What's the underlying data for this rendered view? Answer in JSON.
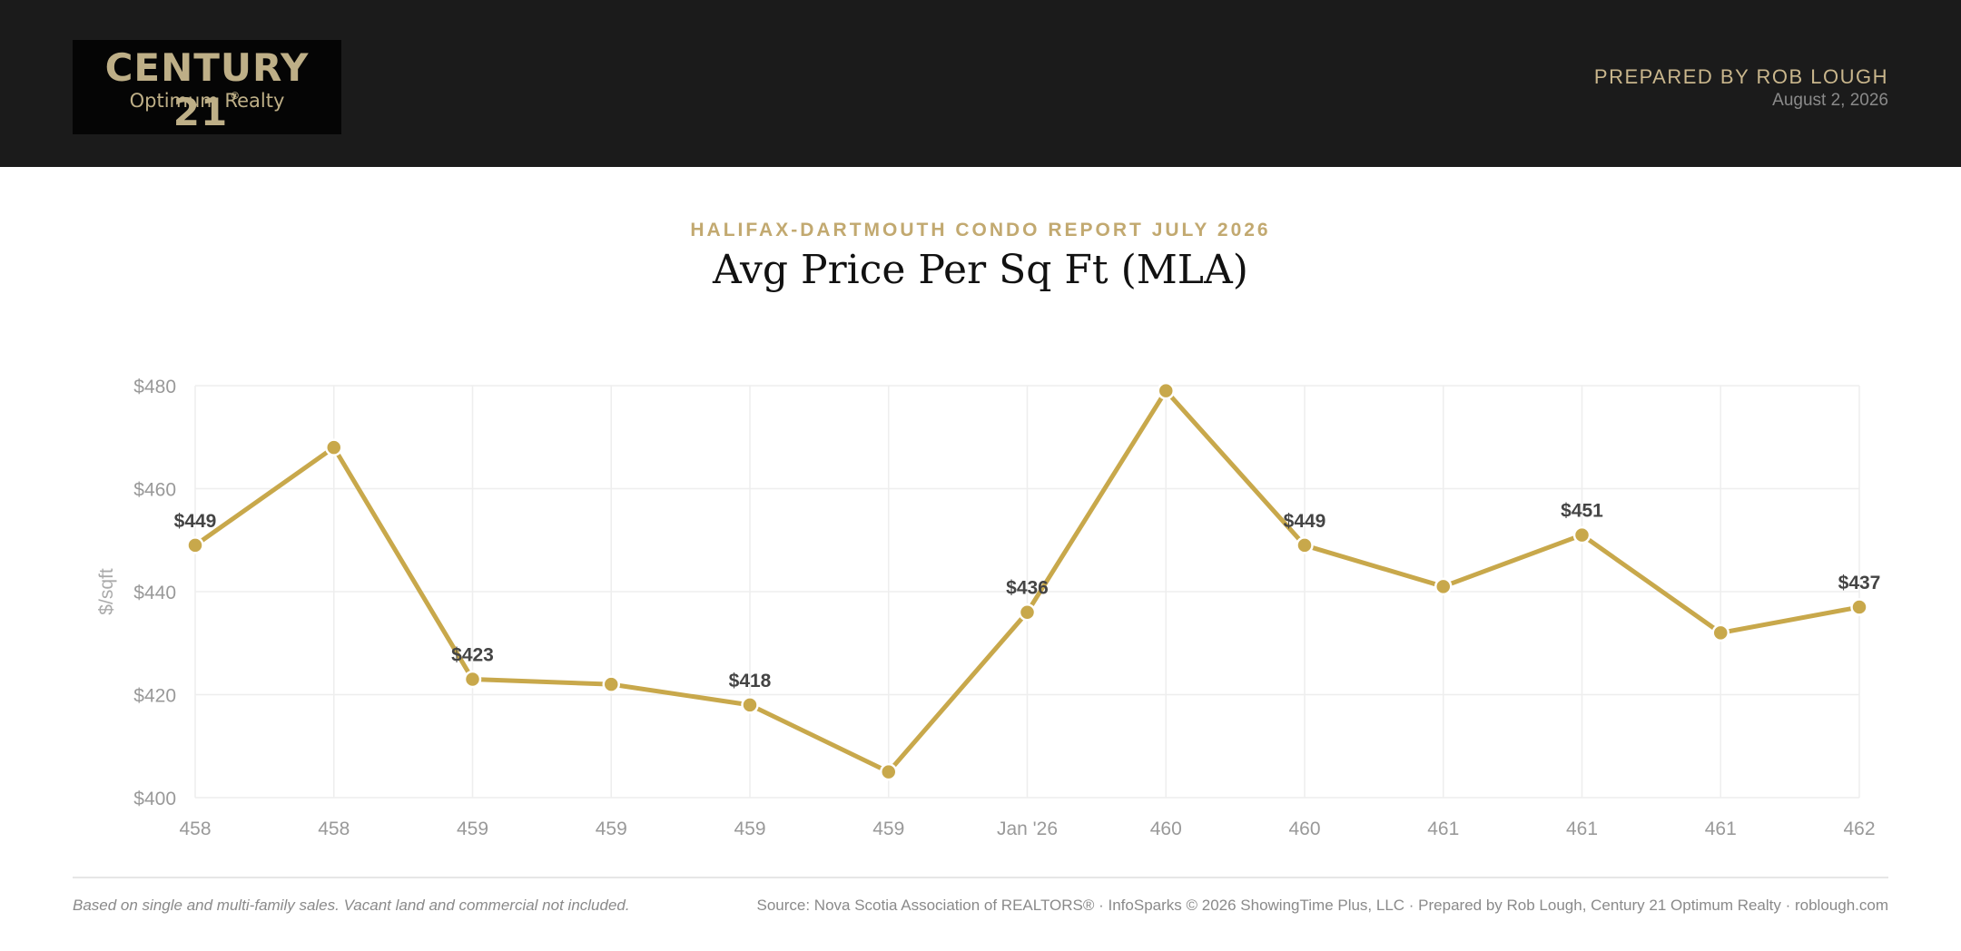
{
  "header": {
    "logo": {
      "brand": "CENTURY 21",
      "registered": "®",
      "office": "Optimum Realty"
    },
    "prepared_by": "PREPARED BY ROB LOUGH",
    "date": "August 2, 2026"
  },
  "report": {
    "subtitle": "HALIFAX-DARTMOUTH CONDO REPORT JULY 2026",
    "title": "Avg Price Per Sq Ft (MLA)"
  },
  "colors": {
    "accent": "#c8a84b",
    "gold_text": "#c2a970",
    "header_bg": "#1b1b1b",
    "grid": "#eeeeee",
    "tick_text": "#999999",
    "data_label": "#444444"
  },
  "chart_data": {
    "type": "line",
    "title": "",
    "xlabel": "",
    "ylabel": "$/sqft",
    "categories": [
      "458",
      "458",
      "459",
      "459",
      "459",
      "459",
      "Jan '26",
      "460",
      "460",
      "461",
      "461",
      "461",
      "462"
    ],
    "series": [
      {
        "name": "",
        "values": [
          449,
          468,
          423,
          422,
          418,
          405,
          436,
          479,
          449,
          441,
          451,
          432,
          437
        ]
      }
    ],
    "data_labels": [
      "$449",
      "",
      "$423",
      "",
      "$418",
      "",
      "$436",
      "",
      "$449",
      "",
      "$451",
      "",
      "$437"
    ],
    "ylim": [
      400,
      480
    ],
    "yticks": [
      400,
      420,
      440,
      460,
      480
    ],
    "ytick_labels": [
      "$400",
      "$420",
      "$440",
      "$460",
      "$480"
    ],
    "grid": true,
    "legend": "none"
  },
  "footer": {
    "note": "Based on single and multi-family sales. Vacant land and commercial not included.",
    "source": "Source: Nova Scotia Association of REALTORS® · InfoSparks © 2026 ShowingTime Plus, LLC · Prepared by Rob Lough, Century 21 Optimum Realty · roblough.com"
  }
}
